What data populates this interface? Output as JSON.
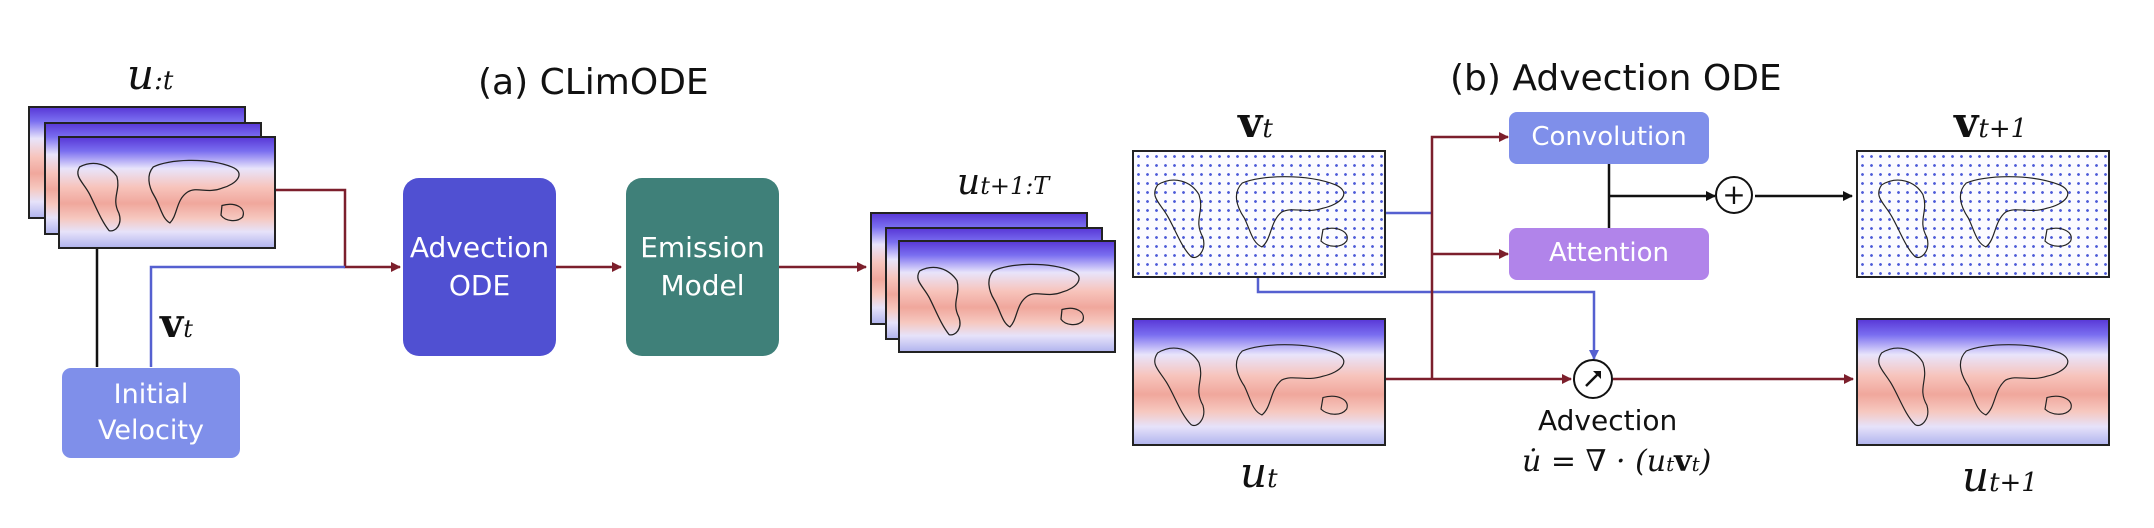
{
  "panel_a": {
    "title": "(a) CLimODE",
    "u_past_label": "u",
    "u_past_sub": ":t",
    "v_label": "v",
    "v_sub": "t",
    "initial_velocity": "Initial\nVelocity",
    "advection_ode": "Advection\nODE",
    "emission_model": "Emission\nModel",
    "u_future_label": "u",
    "u_future_sub": "t+1:T"
  },
  "panel_b": {
    "title": "(b) Advection ODE",
    "v_in_label": "v",
    "v_in_sub": "t",
    "u_in_label": "u",
    "u_in_sub": "t",
    "convolution": "Convolution",
    "attention": "Attention",
    "plus_symbol": "+",
    "v_out_label": "v",
    "v_out_sub": "t+1",
    "advection": "Advection",
    "equation": "u̇ = ∇ · (u",
    "equation_sub1": "t",
    "equation_v": "v",
    "equation_sub2": "t",
    "equation_close": ")",
    "u_out_label": "u",
    "u_out_sub": "t+1"
  },
  "colors": {
    "initial_velocity": "#7f8fea",
    "advection_ode": "#5050d2",
    "emission_model": "#3f8079",
    "convolution": "#7f8fea",
    "attention": "#b184ea",
    "red_arrow": "#7c1f2c",
    "blue_arrow": "#5560d0"
  }
}
